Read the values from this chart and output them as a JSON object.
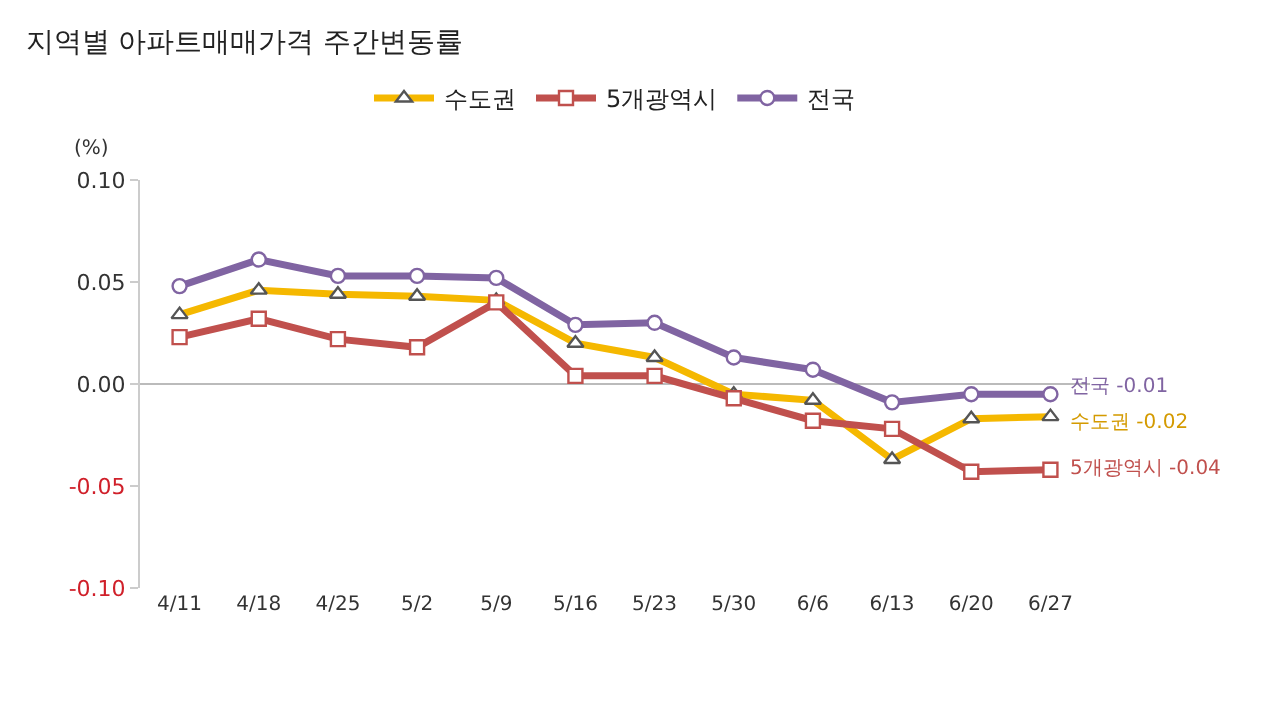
{
  "chart_data": {
    "type": "line",
    "title": "지역별 아파트매매가격 주간변동률",
    "ylabel": "(%)",
    "categories": [
      "4/11",
      "4/18",
      "4/25",
      "5/2",
      "5/9",
      "5/16",
      "5/23",
      "5/30",
      "6/6",
      "6/13",
      "6/20",
      "6/27"
    ],
    "series": [
      {
        "name": "수도권",
        "color": "#f5b800",
        "marker": "triangle",
        "values": [
          0.034,
          0.046,
          0.044,
          0.043,
          0.041,
          0.02,
          0.013,
          -0.005,
          -0.008,
          -0.037,
          -0.017,
          -0.016
        ]
      },
      {
        "name": "5개광역시",
        "color": "#c0504d",
        "marker": "square",
        "values": [
          0.023,
          0.032,
          0.022,
          0.018,
          0.04,
          0.004,
          0.004,
          -0.007,
          -0.018,
          -0.022,
          -0.043,
          -0.042
        ]
      },
      {
        "name": "전국",
        "color": "#8064a2",
        "marker": "circle",
        "values": [
          0.048,
          0.061,
          0.053,
          0.053,
          0.052,
          0.029,
          0.03,
          0.013,
          0.007,
          -0.009,
          -0.005,
          -0.005
        ]
      }
    ],
    "ylim": [
      -0.1,
      0.1
    ],
    "yticks": [
      {
        "value": -0.1,
        "label": "-0.10"
      },
      {
        "value": -0.05,
        "label": "-0.05"
      },
      {
        "value": 0,
        "label": "0.00"
      },
      {
        "value": 0.05,
        "label": "0.05"
      },
      {
        "value": 0.1,
        "label": "0.10"
      }
    ],
    "grid": false,
    "legend": "top",
    "line_style": "solid",
    "ref_lines": [
      {
        "axis": "y",
        "value": 0,
        "color": "#bbbbbb"
      }
    ],
    "annotations": [
      {
        "text": "전국 -0.01",
        "x": "6/27",
        "y": -0.005
      },
      {
        "text": "수도권 -0.02",
        "x": "6/27",
        "y": -0.016
      },
      {
        "text": "5개광역시 -0.04",
        "x": "6/27",
        "y": -0.042
      }
    ]
  }
}
